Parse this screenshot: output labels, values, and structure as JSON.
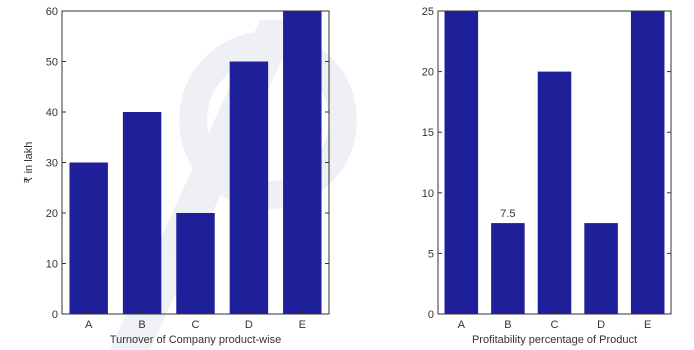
{
  "chart_data": [
    {
      "type": "bar",
      "categories": [
        "A",
        "B",
        "C",
        "D",
        "E"
      ],
      "values": [
        30,
        40,
        20,
        50,
        60
      ],
      "xlabel": "Turnover of Company product-wise",
      "ylabel": "₹ in lakh",
      "ylim": [
        0,
        60
      ],
      "yticks": [
        0,
        10,
        20,
        30,
        40,
        50,
        60
      ],
      "data_labels": [],
      "bar_color": "#1f1f9a",
      "grid": false
    },
    {
      "type": "bar",
      "categories": [
        "A",
        "B",
        "C",
        "D",
        "E"
      ],
      "values": [
        25,
        7.5,
        20,
        7.5,
        25
      ],
      "xlabel": "Profitability percentage of Product",
      "ylabel": "",
      "ylim": [
        0,
        25
      ],
      "yticks": [
        0,
        5,
        10,
        15,
        20,
        25
      ],
      "data_labels": [
        {
          "index": 1,
          "text": "7.5"
        }
      ],
      "bar_color": "#1f1f9a",
      "grid": false
    }
  ]
}
